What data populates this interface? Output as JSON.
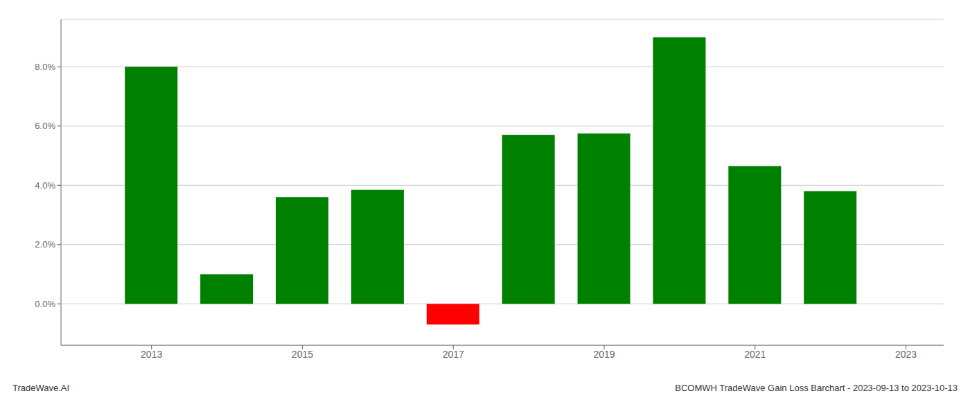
{
  "chart_data": {
    "type": "bar",
    "x": [
      2013,
      2014,
      2015,
      2016,
      2017,
      2018,
      2019,
      2020,
      2021,
      2022
    ],
    "values": [
      0.08,
      0.01,
      0.036,
      0.0385,
      -0.007,
      0.057,
      0.0575,
      0.09,
      0.0465,
      0.038
    ],
    "colors": [
      "#008000",
      "#008000",
      "#008000",
      "#008000",
      "#ff0000",
      "#008000",
      "#008000",
      "#008000",
      "#008000",
      "#008000"
    ],
    "xlim": [
      2011.8,
      2023.5
    ],
    "xticks": [
      2013,
      2015,
      2017,
      2019,
      2021,
      2023
    ],
    "ylim": [
      -0.014,
      0.096
    ],
    "yticks": [
      {
        "value": 0.0,
        "label": "0.0%"
      },
      {
        "value": 0.02,
        "label": "2.0%"
      },
      {
        "value": 0.04,
        "label": "4.0%"
      },
      {
        "value": 0.06,
        "label": "6.0%"
      },
      {
        "value": 0.08,
        "label": "8.0%"
      }
    ],
    "grid": true,
    "annotations": [
      "TradeWave.AI",
      "BCOMWH TradeWave Gain Loss Barchart - 2023-09-13 to 2023-10-13"
    ]
  }
}
